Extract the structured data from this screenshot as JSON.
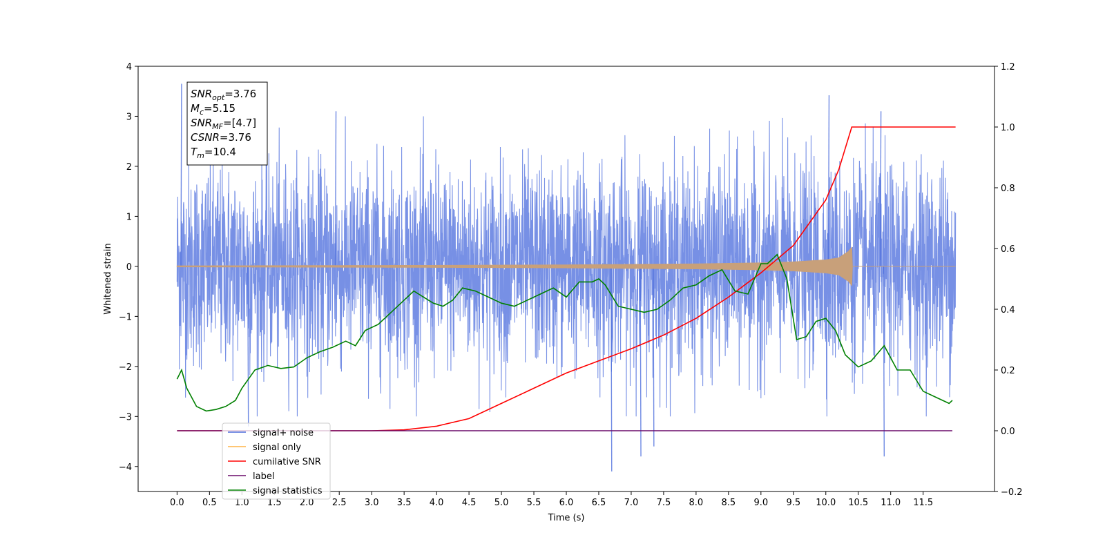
{
  "chart_data": {
    "type": "line",
    "xlabel": "Time (s)",
    "ylabel": "Whitened strain",
    "xlim": [
      -0.6,
      12.6
    ],
    "ylim": [
      -4.5,
      4.0
    ],
    "y2lim": [
      -0.2,
      1.2
    ],
    "x_ticks": [
      "0.0",
      "0.5",
      "1.0",
      "1.5",
      "2.0",
      "2.5",
      "3.0",
      "3.5",
      "4.0",
      "4.5",
      "5.0",
      "5.5",
      "6.0",
      "6.5",
      "7.0",
      "7.5",
      "8.0",
      "8.5",
      "9.0",
      "9.5",
      "10.0",
      "10.5",
      "11.0",
      "11.5"
    ],
    "y_ticks": [
      "4",
      "3",
      "2",
      "1",
      "0",
      "−1",
      "−2",
      "−3",
      "−4"
    ],
    "y2_ticks": [
      "1.2",
      "1.0",
      "0.8",
      "0.6",
      "0.4",
      "0.2",
      "0.0",
      "−0.2"
    ],
    "annotation": {
      "lines": [
        {
          "sym": "SNR",
          "sub": "opt",
          "val": "=3.76"
        },
        {
          "sym": "M",
          "sub": "c",
          "val": "=5.15"
        },
        {
          "sym": "SNR",
          "sub": "MF",
          "val": "=[4.7]"
        },
        {
          "sym": "CSNR",
          "sub": "",
          "val": "=3.76"
        },
        {
          "sym": "T",
          "sub": "m",
          "val": "=10.4"
        }
      ]
    },
    "legend": {
      "placement": "lower-left",
      "entries": [
        {
          "label": "signal+ noise",
          "color": "#4a6bdc"
        },
        {
          "label": "signal only",
          "color": "#ffb347"
        },
        {
          "label": "cumilative SNR",
          "color": "#ff0000"
        },
        {
          "label": "label",
          "color": "#6a0a6a"
        },
        {
          "label": "signal statistics",
          "color": "#008000"
        }
      ]
    },
    "series": [
      {
        "name": "signal+ noise",
        "axis": "left",
        "color": "#4a6bdc",
        "t_range": [
          0.0,
          12.0
        ],
        "amplitude_std": 1.0,
        "spikes": [
          {
            "x": 0.07,
            "y": 3.65
          },
          {
            "x": 2.45,
            "y": 3.1
          },
          {
            "x": 10.05,
            "y": 3.42
          },
          {
            "x": 10.85,
            "y": 3.1
          },
          {
            "x": 6.7,
            "y": -4.1
          },
          {
            "x": 7.15,
            "y": -3.8
          },
          {
            "x": 7.35,
            "y": -3.6
          },
          {
            "x": 10.9,
            "y": -3.8
          },
          {
            "x": 1.1,
            "y": -3.2
          }
        ]
      },
      {
        "name": "signal only",
        "axis": "left",
        "color": "#c8a07a",
        "envelope_x": [
          0.0,
          2.0,
          4.0,
          6.0,
          7.0,
          8.0,
          9.0,
          9.5,
          10.0,
          10.2,
          10.35,
          10.4,
          10.41,
          12.0
        ],
        "envelope_y": [
          0.01,
          0.015,
          0.02,
          0.03,
          0.04,
          0.05,
          0.07,
          0.09,
          0.13,
          0.17,
          0.3,
          0.38,
          0.0,
          0.0
        ]
      },
      {
        "name": "cumilative SNR",
        "axis": "right",
        "color": "#ff0000",
        "x": [
          0.0,
          2.0,
          3.0,
          3.5,
          4.0,
          4.5,
          5.0,
          5.5,
          6.0,
          6.5,
          7.0,
          7.5,
          8.0,
          8.5,
          9.0,
          9.5,
          10.0,
          10.2,
          10.4,
          12.0
        ],
        "values": [
          0.0,
          0.0,
          0.0,
          0.003,
          0.015,
          0.04,
          0.09,
          0.14,
          0.19,
          0.23,
          0.27,
          0.315,
          0.37,
          0.44,
          0.52,
          0.61,
          0.76,
          0.86,
          1.0,
          1.0
        ]
      },
      {
        "name": "label",
        "axis": "right",
        "color": "#6a0a6a",
        "x": [
          0.0,
          11.95
        ],
        "values": [
          0.0,
          0.0
        ]
      },
      {
        "name": "signal statistics",
        "axis": "right",
        "color": "#008000",
        "x": [
          0.0,
          0.07,
          0.15,
          0.3,
          0.45,
          0.6,
          0.75,
          0.9,
          1.0,
          1.2,
          1.4,
          1.6,
          1.8,
          2.0,
          2.2,
          2.4,
          2.6,
          2.75,
          2.9,
          3.1,
          3.3,
          3.5,
          3.65,
          3.8,
          3.95,
          4.1,
          4.25,
          4.4,
          4.6,
          4.8,
          5.0,
          5.2,
          5.4,
          5.6,
          5.8,
          6.0,
          6.2,
          6.4,
          6.5,
          6.6,
          6.8,
          7.0,
          7.2,
          7.4,
          7.6,
          7.8,
          8.0,
          8.2,
          8.4,
          8.6,
          8.8,
          9.0,
          9.1,
          9.25,
          9.4,
          9.55,
          9.7,
          9.85,
          10.0,
          10.15,
          10.3,
          10.5,
          10.7,
          10.9,
          11.1,
          11.3,
          11.5,
          11.7,
          11.9,
          11.95
        ],
        "values": [
          0.17,
          0.2,
          0.14,
          0.08,
          0.065,
          0.07,
          0.08,
          0.1,
          0.14,
          0.2,
          0.215,
          0.205,
          0.21,
          0.24,
          0.26,
          0.275,
          0.295,
          0.28,
          0.33,
          0.35,
          0.39,
          0.43,
          0.46,
          0.44,
          0.42,
          0.41,
          0.43,
          0.47,
          0.46,
          0.44,
          0.42,
          0.41,
          0.43,
          0.45,
          0.47,
          0.44,
          0.49,
          0.49,
          0.5,
          0.48,
          0.41,
          0.4,
          0.39,
          0.4,
          0.43,
          0.47,
          0.48,
          0.51,
          0.53,
          0.46,
          0.45,
          0.55,
          0.55,
          0.58,
          0.5,
          0.3,
          0.31,
          0.36,
          0.37,
          0.33,
          0.25,
          0.21,
          0.23,
          0.28,
          0.2,
          0.2,
          0.13,
          0.11,
          0.09,
          0.1
        ]
      }
    ]
  }
}
